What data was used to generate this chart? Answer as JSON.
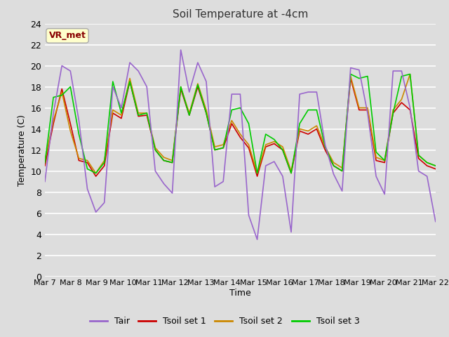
{
  "title": "Soil Temperature at -4cm",
  "xlabel": "Time",
  "ylabel": "Temperature (C)",
  "ylim": [
    0,
    24
  ],
  "yticks": [
    0,
    2,
    4,
    6,
    8,
    10,
    12,
    14,
    16,
    18,
    20,
    22,
    24
  ],
  "xtick_labels": [
    "Mar 7",
    "Mar 8",
    "Mar 9",
    "Mar 10",
    "Mar 11",
    "Mar 12",
    "Mar 13",
    "Mar 14",
    "Mar 15",
    "Mar 16",
    "Mar 17",
    "Mar 18",
    "Mar 19",
    "Mar 20",
    "Mar 21",
    "Mar 22"
  ],
  "annotation_text": "VR_met",
  "annotation_bg": "#ffffcc",
  "annotation_border": "#aaaaaa",
  "annotation_text_color": "#880000",
  "bg_color": "#dddddd",
  "plot_bg": "#dddddd",
  "grid_color": "#ffffff",
  "legend_labels": [
    "Tair",
    "Tsoil set 1",
    "Tsoil set 2",
    "Tsoil set 3"
  ],
  "colors": [
    "#9966cc",
    "#cc0000",
    "#cc8800",
    "#00cc00"
  ],
  "line_width": 1.2,
  "tair": [
    9.0,
    15.5,
    20.0,
    19.5,
    14.8,
    8.3,
    6.1,
    7.0,
    18.0,
    16.0,
    20.3,
    19.5,
    18.0,
    10.0,
    8.8,
    7.9,
    21.5,
    17.5,
    20.3,
    18.5,
    8.5,
    9.0,
    17.3,
    17.3,
    5.8,
    3.5,
    10.5,
    10.9,
    9.5,
    4.2,
    17.3,
    17.5,
    17.5,
    12.5,
    9.7,
    8.1,
    19.8,
    19.6,
    15.5,
    9.5,
    7.8,
    19.5,
    19.5,
    16.0,
    10.0,
    9.5,
    5.2
  ],
  "tsoil1": [
    10.5,
    14.5,
    17.8,
    14.5,
    11.0,
    10.8,
    9.5,
    10.5,
    15.5,
    15.0,
    18.5,
    15.2,
    15.3,
    12.0,
    11.0,
    10.8,
    17.8,
    15.3,
    18.0,
    15.5,
    12.0,
    12.2,
    14.5,
    13.2,
    12.2,
    9.5,
    12.3,
    12.6,
    12.0,
    9.8,
    13.8,
    13.5,
    14.0,
    12.0,
    10.5,
    10.0,
    18.8,
    15.8,
    15.8,
    11.0,
    10.8,
    15.5,
    16.5,
    15.8,
    11.2,
    10.5,
    10.2
  ],
  "tsoil2": [
    11.0,
    14.8,
    17.5,
    13.8,
    11.2,
    11.0,
    9.8,
    11.0,
    15.8,
    15.3,
    18.8,
    15.5,
    15.5,
    12.2,
    11.3,
    11.0,
    18.0,
    15.5,
    18.3,
    15.8,
    12.3,
    12.5,
    14.8,
    13.5,
    12.5,
    9.8,
    12.5,
    12.8,
    12.3,
    10.0,
    14.0,
    13.8,
    14.3,
    12.3,
    10.8,
    10.3,
    19.0,
    16.0,
    16.0,
    11.3,
    11.0,
    15.8,
    16.8,
    19.2,
    11.5,
    10.8,
    10.5
  ],
  "tsoil3": [
    10.8,
    17.0,
    17.2,
    18.0,
    13.5,
    10.2,
    9.8,
    10.8,
    18.5,
    15.5,
    18.5,
    15.3,
    15.5,
    12.0,
    11.0,
    10.8,
    18.0,
    15.3,
    18.2,
    15.5,
    12.0,
    12.2,
    15.8,
    16.0,
    14.5,
    9.8,
    13.5,
    13.0,
    12.0,
    9.8,
    14.5,
    15.8,
    15.8,
    12.3,
    10.5,
    10.0,
    19.2,
    18.8,
    19.0,
    11.8,
    11.0,
    15.5,
    19.0,
    19.2,
    11.5,
    10.8,
    10.5
  ]
}
